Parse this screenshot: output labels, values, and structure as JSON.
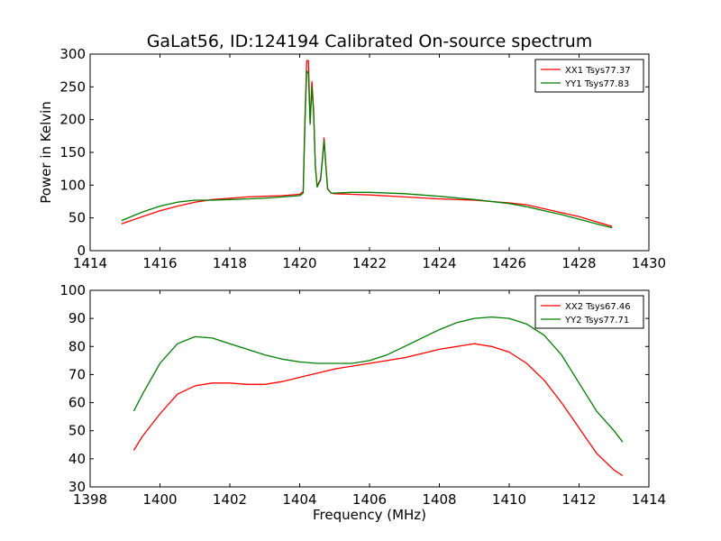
{
  "title": "GaLat56, ID:124194 Calibrated On-source spectrum",
  "colors": {
    "xx": "#ff0000",
    "yy": "#007f00"
  },
  "chart_data": [
    {
      "type": "line",
      "xlabel": "",
      "ylabel": "Power in Kelvin",
      "xlim": [
        1414,
        1430
      ],
      "ylim": [
        0,
        300
      ],
      "xticks": [
        "1414",
        "1416",
        "1418",
        "1420",
        "1422",
        "1424",
        "1426",
        "1428",
        "1430"
      ],
      "yticks": [
        "0",
        "50",
        "100",
        "150",
        "200",
        "250",
        "300"
      ],
      "legend_position": "top-right",
      "grid": false,
      "series": [
        {
          "name": "XX1 Tsys77.37",
          "color": "#ff0000",
          "x": [
            1414.9,
            1415.5,
            1416.0,
            1416.5,
            1417.0,
            1417.5,
            1418.0,
            1418.5,
            1419.0,
            1419.5,
            1420.0,
            1420.1,
            1420.15,
            1420.2,
            1420.25,
            1420.3,
            1420.35,
            1420.4,
            1420.45,
            1420.5,
            1420.6,
            1420.65,
            1420.7,
            1420.75,
            1420.8,
            1420.9,
            1421.0,
            1421.5,
            1422.0,
            1423.0,
            1424.0,
            1425.0,
            1426.0,
            1426.5,
            1427.0,
            1427.5,
            1428.0,
            1428.5,
            1428.95
          ],
          "y": [
            41,
            52,
            61,
            68,
            74,
            78,
            80,
            82,
            83,
            84,
            86,
            90,
            200,
            290,
            290,
            195,
            258,
            215,
            130,
            98,
            110,
            140,
            172,
            130,
            95,
            88,
            87,
            86,
            85,
            82,
            79,
            77,
            73,
            70,
            64,
            58,
            52,
            44,
            37
          ]
        },
        {
          "name": "YY1 Tsys77.83",
          "color": "#007f00",
          "x": [
            1414.9,
            1415.5,
            1416.0,
            1416.5,
            1417.0,
            1417.5,
            1418.0,
            1418.5,
            1419.0,
            1419.5,
            1420.0,
            1420.1,
            1420.15,
            1420.2,
            1420.25,
            1420.3,
            1420.35,
            1420.4,
            1420.45,
            1420.5,
            1420.6,
            1420.65,
            1420.7,
            1420.75,
            1420.8,
            1420.9,
            1421.0,
            1421.5,
            1422.0,
            1423.0,
            1424.0,
            1425.0,
            1426.0,
            1426.5,
            1427.0,
            1427.5,
            1428.0,
            1428.5,
            1428.95
          ],
          "y": [
            46,
            59,
            68,
            74,
            77,
            77,
            78,
            79,
            80,
            82,
            84,
            88,
            190,
            275,
            270,
            193,
            250,
            208,
            128,
            97,
            108,
            138,
            168,
            128,
            94,
            88,
            88,
            89,
            89,
            87,
            83,
            78,
            72,
            67,
            61,
            55,
            48,
            41,
            35
          ]
        }
      ]
    },
    {
      "type": "line",
      "xlabel": "Frequency (MHz)",
      "ylabel": "",
      "xlim": [
        1398,
        1414
      ],
      "ylim": [
        30,
        100
      ],
      "xticks": [
        "1398",
        "1400",
        "1402",
        "1404",
        "1406",
        "1408",
        "1410",
        "1412",
        "1414"
      ],
      "yticks": [
        "30",
        "40",
        "50",
        "60",
        "70",
        "80",
        "90",
        "100"
      ],
      "legend_position": "top-right",
      "grid": false,
      "series": [
        {
          "name": "XX2 Tsys67.46",
          "color": "#ff0000",
          "x": [
            1399.25,
            1399.5,
            1400.0,
            1400.5,
            1401.0,
            1401.5,
            1402.0,
            1402.5,
            1403.0,
            1403.5,
            1404.0,
            1404.5,
            1405.0,
            1405.5,
            1406.0,
            1406.5,
            1407.0,
            1407.5,
            1408.0,
            1408.5,
            1409.0,
            1409.5,
            1410.0,
            1410.5,
            1411.0,
            1411.5,
            1412.0,
            1412.5,
            1413.0,
            1413.25
          ],
          "y": [
            43,
            48,
            56,
            63,
            66,
            67,
            67,
            66.5,
            66.5,
            67.5,
            69,
            70.5,
            72,
            73,
            74,
            75,
            76,
            77.5,
            79,
            80,
            81,
            80,
            78,
            74,
            68,
            60,
            51,
            42,
            36,
            34
          ]
        },
        {
          "name": "YY2 Tsys77.71",
          "color": "#007f00",
          "x": [
            1399.25,
            1399.5,
            1400.0,
            1400.5,
            1401.0,
            1401.5,
            1402.0,
            1402.5,
            1403.0,
            1403.5,
            1404.0,
            1404.5,
            1405.0,
            1405.5,
            1406.0,
            1406.5,
            1407.0,
            1407.5,
            1408.0,
            1408.5,
            1409.0,
            1409.5,
            1410.0,
            1410.5,
            1411.0,
            1411.5,
            1412.0,
            1412.5,
            1413.0,
            1413.25
          ],
          "y": [
            57,
            63,
            74,
            81,
            83.5,
            83,
            81,
            79,
            77,
            75.5,
            74.5,
            74,
            74,
            74,
            75,
            77,
            80,
            83,
            86,
            88.5,
            90,
            90.5,
            90,
            88,
            84,
            77,
            67,
            57,
            50,
            46
          ]
        }
      ]
    }
  ]
}
